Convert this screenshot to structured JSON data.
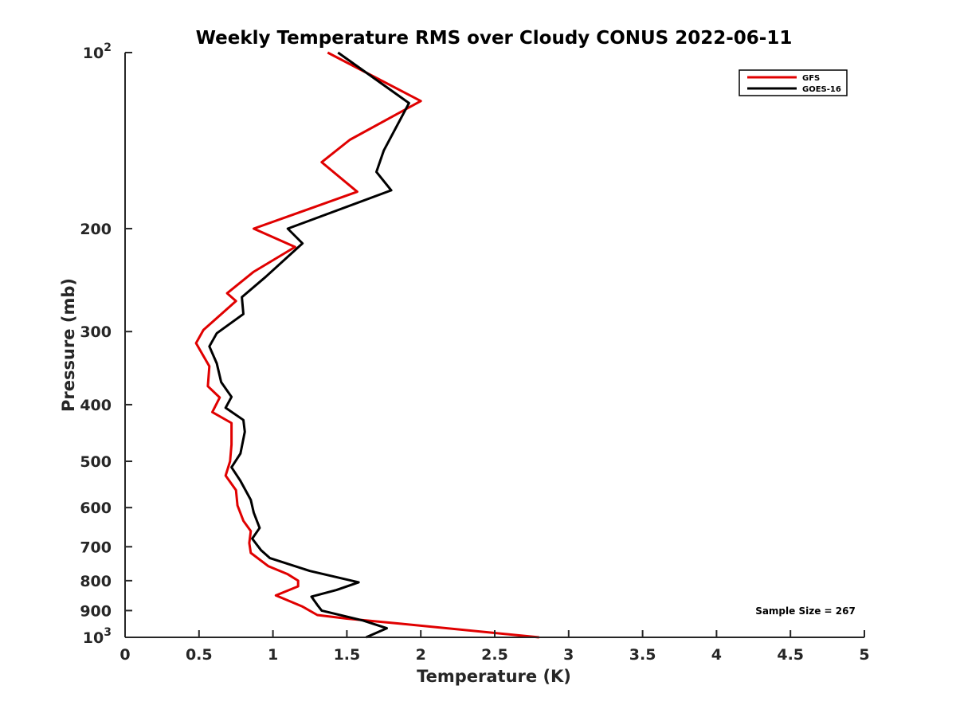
{
  "chart_data": {
    "type": "line",
    "title": "Weekly Temperature RMS over Cloudy CONUS 2022-06-11",
    "xlabel": "Temperature (K)",
    "ylabel": "Pressure (mb)",
    "xlim": [
      0,
      5
    ],
    "ylim": [
      100,
      1000
    ],
    "yscale": "log",
    "y_reversed": true,
    "x_ticks": [
      "0",
      "0.5",
      "1",
      "1.5",
      "2",
      "2.5",
      "3",
      "3.5",
      "4",
      "4.5",
      "5"
    ],
    "y_ticks": [
      {
        "value": 100,
        "label": "10",
        "exp": "2"
      },
      {
        "value": 200,
        "label": "200"
      },
      {
        "value": 300,
        "label": "300"
      },
      {
        "value": 400,
        "label": "400"
      },
      {
        "value": 500,
        "label": "500"
      },
      {
        "value": 600,
        "label": "600"
      },
      {
        "value": 700,
        "label": "700"
      },
      {
        "value": 800,
        "label": "800"
      },
      {
        "value": 900,
        "label": "900"
      },
      {
        "value": 1000,
        "label": "10",
        "exp": "3"
      }
    ],
    "legend_position": "top-right",
    "grid": false,
    "annotation": "Sample Size = 267",
    "series": [
      {
        "name": "GFS",
        "color": "#e00000",
        "points": [
          [
            1.37,
            100
          ],
          [
            2.0,
            121
          ],
          [
            1.52,
            141
          ],
          [
            1.33,
            154
          ],
          [
            1.57,
            173
          ],
          [
            0.87,
            200
          ],
          [
            1.15,
            215
          ],
          [
            0.87,
            237
          ],
          [
            0.69,
            258
          ],
          [
            0.75,
            266
          ],
          [
            0.53,
            298
          ],
          [
            0.48,
            314
          ],
          [
            0.57,
            344
          ],
          [
            0.56,
            372
          ],
          [
            0.64,
            389
          ],
          [
            0.59,
            412
          ],
          [
            0.72,
            430
          ],
          [
            0.72,
            468
          ],
          [
            0.71,
            500
          ],
          [
            0.68,
            529
          ],
          [
            0.75,
            560
          ],
          [
            0.76,
            595
          ],
          [
            0.8,
            632
          ],
          [
            0.85,
            658
          ],
          [
            0.84,
            690
          ],
          [
            0.85,
            717
          ],
          [
            0.97,
            756
          ],
          [
            1.1,
            780
          ],
          [
            1.17,
            800
          ],
          [
            1.17,
            818
          ],
          [
            1.02,
            848
          ],
          [
            1.2,
            886
          ],
          [
            1.3,
            916
          ],
          [
            1.5,
            929
          ],
          [
            1.87,
            948
          ],
          [
            2.8,
            1000
          ]
        ]
      },
      {
        "name": "GOES-16",
        "color": "#000000",
        "points": [
          [
            1.44,
            100
          ],
          [
            1.92,
            122
          ],
          [
            1.75,
            147
          ],
          [
            1.7,
            160
          ],
          [
            1.8,
            172
          ],
          [
            1.1,
            200
          ],
          [
            1.2,
            212
          ],
          [
            0.95,
            242
          ],
          [
            0.79,
            262
          ],
          [
            0.8,
            280
          ],
          [
            0.62,
            302
          ],
          [
            0.57,
            318
          ],
          [
            0.62,
            340
          ],
          [
            0.65,
            366
          ],
          [
            0.72,
            388
          ],
          [
            0.68,
            405
          ],
          [
            0.8,
            425
          ],
          [
            0.81,
            445
          ],
          [
            0.78,
            485
          ],
          [
            0.72,
            512
          ],
          [
            0.78,
            540
          ],
          [
            0.85,
            582
          ],
          [
            0.87,
            612
          ],
          [
            0.91,
            650
          ],
          [
            0.86,
            678
          ],
          [
            0.92,
            710
          ],
          [
            0.98,
            732
          ],
          [
            1.25,
            770
          ],
          [
            1.58,
            805
          ],
          [
            1.43,
            830
          ],
          [
            1.26,
            852
          ],
          [
            1.3,
            880
          ],
          [
            1.33,
            900
          ],
          [
            1.61,
            936
          ],
          [
            1.77,
            965
          ],
          [
            1.63,
            1000
          ]
        ]
      }
    ]
  }
}
